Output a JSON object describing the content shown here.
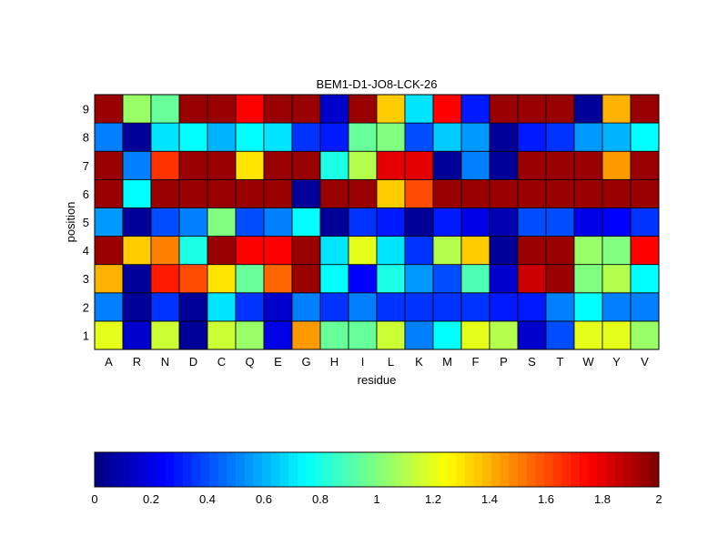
{
  "chart_data": {
    "type": "heatmap",
    "title": "BEM1-D1-JO8-LCK-26",
    "xlabel": "residue",
    "ylabel": "position",
    "x_categories": [
      "A",
      "R",
      "N",
      "D",
      "C",
      "Q",
      "E",
      "G",
      "H",
      "I",
      "L",
      "K",
      "M",
      "F",
      "P",
      "S",
      "T",
      "W",
      "Y",
      "V"
    ],
    "y_categories": [
      "1",
      "2",
      "3",
      "4",
      "5",
      "6",
      "7",
      "8",
      "9"
    ],
    "values": [
      [
        1.2,
        0.15,
        1.15,
        0.05,
        1.15,
        1.05,
        0.2,
        1.45,
        0.95,
        0.95,
        1.15,
        0.5,
        0.75,
        1.2,
        1.1,
        0.15,
        0.4,
        1.2,
        1.2,
        1.05
      ],
      [
        0.5,
        0.05,
        0.35,
        0.05,
        0.7,
        0.35,
        0.15,
        0.5,
        0.35,
        0.5,
        0.35,
        0.35,
        0.35,
        0.35,
        0.3,
        0.3,
        0.5,
        0.75,
        0.5,
        0.5
      ],
      [
        1.4,
        0.05,
        1.7,
        1.6,
        1.3,
        0.95,
        1.55,
        1.95,
        0.75,
        0.25,
        0.8,
        0.55,
        0.4,
        0.9,
        0.15,
        1.85,
        1.95,
        1.0,
        1.1,
        0.75
      ],
      [
        1.95,
        1.35,
        1.5,
        0.8,
        1.95,
        1.75,
        1.75,
        1.95,
        0.7,
        1.2,
        0.7,
        0.35,
        1.1,
        1.35,
        0.05,
        1.95,
        1.95,
        1.05,
        1.0,
        1.75
      ],
      [
        0.55,
        0.05,
        0.4,
        0.5,
        1.0,
        0.4,
        0.5,
        0.75,
        0.05,
        0.35,
        0.3,
        0.05,
        0.3,
        0.2,
        0.1,
        0.4,
        0.4,
        0.2,
        0.25,
        0.35
      ],
      [
        1.95,
        0.75,
        1.95,
        1.95,
        1.95,
        1.95,
        1.95,
        0.05,
        1.95,
        1.95,
        1.35,
        1.6,
        1.95,
        1.95,
        1.95,
        1.95,
        1.95,
        1.95,
        1.95,
        1.95
      ],
      [
        1.95,
        0.5,
        1.65,
        1.95,
        1.95,
        1.3,
        1.95,
        1.95,
        0.8,
        1.1,
        1.8,
        1.8,
        0.05,
        0.5,
        0.05,
        1.95,
        1.95,
        1.95,
        1.45,
        1.95
      ],
      [
        0.5,
        0.05,
        0.7,
        0.75,
        0.6,
        0.75,
        0.7,
        0.35,
        0.3,
        0.95,
        1.0,
        0.4,
        0.65,
        0.55,
        0.05,
        0.3,
        0.35,
        0.55,
        0.6,
        0.75
      ],
      [
        1.95,
        1.05,
        0.95,
        1.95,
        1.95,
        1.75,
        1.95,
        1.95,
        0.15,
        1.95,
        1.35,
        0.7,
        1.75,
        0.3,
        1.95,
        1.95,
        1.95,
        0.05,
        1.4,
        1.95
      ]
    ],
    "colorbar": {
      "min": 0,
      "max": 2,
      "tick_labels": [
        "0",
        "0.2",
        "0.4",
        "0.6",
        "0.8",
        "1",
        "1.2",
        "1.4",
        "1.6",
        "1.8",
        "2"
      ],
      "colormap": "jet"
    },
    "grid": false
  }
}
